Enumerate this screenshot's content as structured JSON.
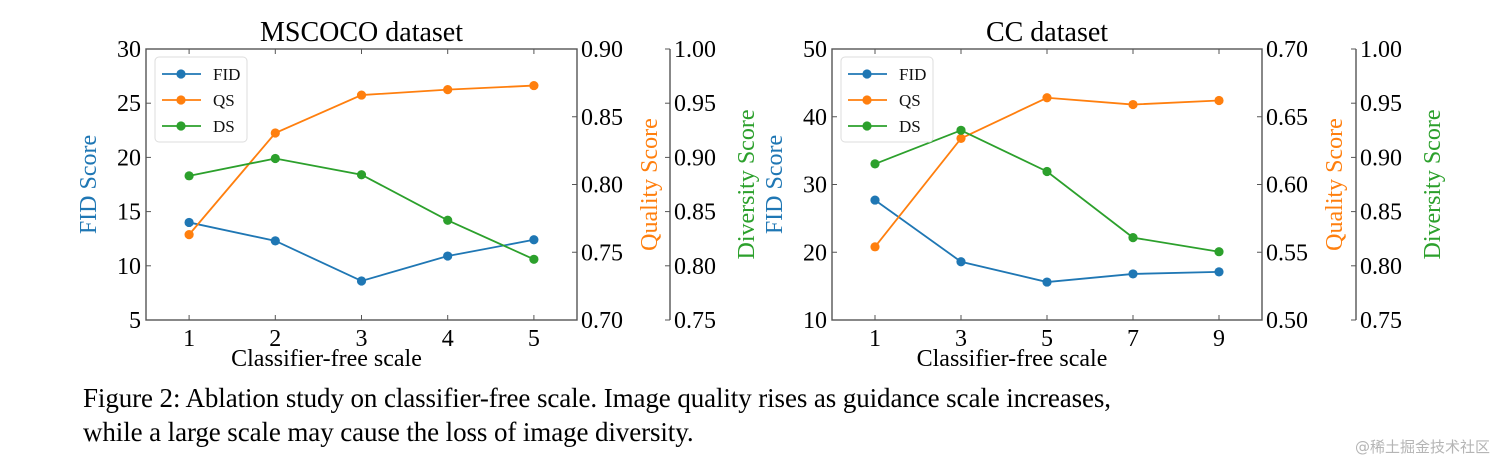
{
  "figure": {
    "caption_line1": "Figure 2: Ablation study on classifier-free scale. Image quality rises as guidance scale increases,",
    "caption_line2": "while a large scale may cause the loss of image diversity.",
    "watermark": "@稀土掘金技术社区"
  },
  "colors": {
    "FID": "#1f77b4",
    "QS": "#ff7f0e",
    "DS": "#2ca02c",
    "axis": "#555555"
  },
  "chart_data": [
    {
      "type": "line",
      "title": "MSCOCO dataset",
      "xlabel": "Classifier-free scale",
      "x": [
        1,
        2,
        3,
        4,
        5
      ],
      "x_ticks": [
        "1",
        "2",
        "3",
        "4",
        "5"
      ],
      "x_range": [
        0.5,
        5.5
      ],
      "legend": {
        "entries": [
          "FID",
          "QS",
          "DS"
        ],
        "position": "top-left"
      },
      "grid": false,
      "axes": [
        {
          "id": "FID",
          "label": "FID Score",
          "side": "left",
          "ylim": [
            5,
            30
          ],
          "ticks": [
            "5",
            "10",
            "15",
            "20",
            "25",
            "30"
          ]
        },
        {
          "id": "QS",
          "label": "Quality Score",
          "side": "right",
          "ylim": [
            0.7,
            0.9
          ],
          "ticks": [
            "0.70",
            "0.75",
            "0.80",
            "0.85",
            "0.90"
          ]
        },
        {
          "id": "DS",
          "label": "Diversity Score",
          "side": "right-outer",
          "ylim": [
            0.75,
            1.0
          ],
          "ticks": [
            "0.75",
            "0.80",
            "0.85",
            "0.90",
            "0.95",
            "1.00"
          ]
        }
      ],
      "series": [
        {
          "name": "FID",
          "axis": "FID",
          "values": [
            14.0,
            12.3,
            8.6,
            10.9,
            12.4
          ]
        },
        {
          "name": "QS",
          "axis": "QS",
          "values": [
            0.763,
            0.838,
            0.866,
            0.87,
            0.873
          ]
        },
        {
          "name": "DS",
          "axis": "DS",
          "values": [
            0.883,
            0.899,
            0.884,
            0.842,
            0.806
          ]
        }
      ]
    },
    {
      "type": "line",
      "title": "CC dataset",
      "xlabel": "Classifier-free scale",
      "x": [
        1,
        3,
        5,
        7,
        9
      ],
      "x_ticks": [
        "1",
        "3",
        "5",
        "7",
        "9"
      ],
      "x_range": [
        0,
        10
      ],
      "legend": {
        "entries": [
          "FID",
          "QS",
          "DS"
        ],
        "position": "top-left"
      },
      "grid": false,
      "axes": [
        {
          "id": "FID",
          "label": "FID Score",
          "side": "left",
          "ylim": [
            10,
            50
          ],
          "ticks": [
            "10",
            "20",
            "30",
            "40",
            "50"
          ]
        },
        {
          "id": "QS",
          "label": "Quality Score",
          "side": "right",
          "ylim": [
            0.5,
            0.7
          ],
          "ticks": [
            "0.50",
            "0.55",
            "0.60",
            "0.65",
            "0.70"
          ]
        },
        {
          "id": "DS",
          "label": "Diversity Score",
          "side": "right-outer",
          "ylim": [
            0.75,
            1.0
          ],
          "ticks": [
            "0.75",
            "0.80",
            "0.85",
            "0.90",
            "0.95",
            "1.00"
          ]
        }
      ],
      "series": [
        {
          "name": "FID",
          "axis": "FID",
          "values": [
            27.7,
            18.6,
            15.6,
            16.8,
            17.1
          ]
        },
        {
          "name": "QS",
          "axis": "QS",
          "values": [
            0.554,
            0.634,
            0.664,
            0.659,
            0.662
          ]
        },
        {
          "name": "DS",
          "axis": "DS",
          "values": [
            0.894,
            0.925,
            0.887,
            0.826,
            0.813
          ]
        }
      ]
    }
  ]
}
